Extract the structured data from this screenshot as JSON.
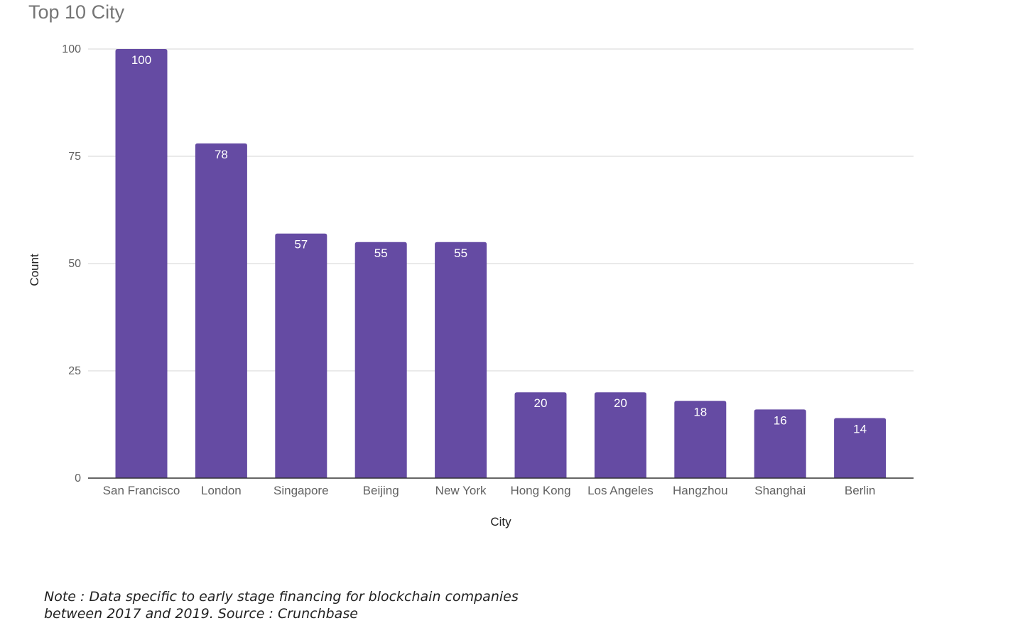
{
  "chart_data": {
    "type": "bar",
    "title": "Top 10 City",
    "xlabel": "City",
    "ylabel": "Count",
    "categories": [
      "San Francisco",
      "London",
      "Singapore",
      "Beijing",
      "New York",
      "Hong Kong",
      "Los Angeles",
      "Hangzhou",
      "Shanghai",
      "Berlin"
    ],
    "values": [
      100,
      78,
      57,
      55,
      55,
      20,
      20,
      18,
      16,
      14
    ],
    "ylim": [
      0,
      100
    ],
    "yticks": [
      0,
      25,
      50,
      75,
      100
    ],
    "grid": true,
    "legend": "none",
    "data_labels": true,
    "colors": {
      "bar": "#654ba3",
      "grid": "#dddddd",
      "axis": "#333333"
    }
  },
  "note": {
    "line1": "Note : Data specific to early stage financing for blockchain companies",
    "line2": "between 2017 and 2019. Source : Crunchbase"
  }
}
